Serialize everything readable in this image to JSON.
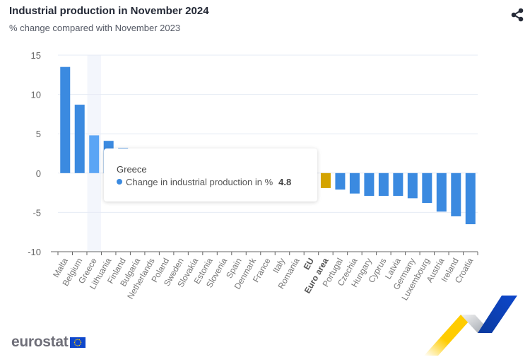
{
  "header": {
    "title": "Industrial production in November 2024",
    "subtitle": "% change compared with November 2023",
    "share_icon": "share-icon"
  },
  "tooltip": {
    "category": "Greece",
    "series_label": "Change in industrial production in %",
    "value": "4.8"
  },
  "footer": {
    "logo_text": "eurostat",
    "flag_icon": "eu-flag-icon"
  },
  "colors": {
    "bar": "#3b8ae0",
    "bar_hover": "#5aa5f5",
    "aggregate": "#d4a300",
    "grid": "#e6ebf5",
    "highlight_band": "#f3f6fc"
  },
  "chart_data": {
    "type": "bar",
    "title": "Industrial production in November 2024",
    "subtitle": "% change compared with November 2023",
    "xlabel": "",
    "ylabel": "",
    "ylim": [
      -10,
      15
    ],
    "yticks": [
      15,
      10,
      5,
      0,
      -5,
      -10
    ],
    "grid": true,
    "legend": "none",
    "highlighted_category": "Greece",
    "bold_categories": [
      "EU",
      "Euro area"
    ],
    "categories": [
      "Malta",
      "Belgium",
      "Greece",
      "Lithuania",
      "Finland",
      "Bulgaria",
      "Netherlands",
      "Poland",
      "Sweden",
      "Slovakia",
      "Estonia",
      "Slovenia",
      "Spain",
      "Denmark",
      "France",
      "Italy",
      "Romania",
      "EU",
      "Euro area",
      "Portugal",
      "Czechia",
      "Hungary",
      "Cyprus",
      "Latvia",
      "Germany",
      "Luxembourg",
      "Austria",
      "Ireland",
      "Croatia"
    ],
    "series": [
      {
        "name": "Change in industrial production in %",
        "values": [
          13.5,
          8.7,
          4.8,
          4.1,
          3.2,
          null,
          null,
          null,
          null,
          null,
          null,
          null,
          null,
          null,
          null,
          null,
          null,
          null,
          -1.9,
          -2.1,
          -2.6,
          -2.9,
          -2.9,
          -2.9,
          -3.2,
          -3.8,
          -4.9,
          -5.5,
          -6.5
        ]
      }
    ]
  }
}
